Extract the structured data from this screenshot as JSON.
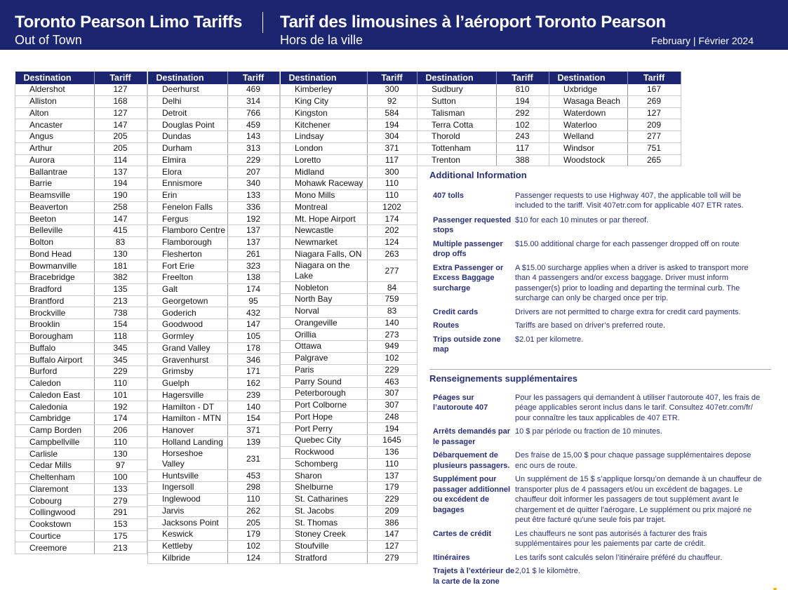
{
  "header": {
    "title_en": "Toronto Pearson Limo Tariffs",
    "subtitle_en": "Out of Town",
    "title_fr": "Tarif des limousines à l’aéroport Toronto Pearson",
    "subtitle_fr": "Hors de la ville",
    "date": "February  | Février 2024"
  },
  "colors": {
    "brand": "#1b2570",
    "text_info": "#28307a"
  },
  "table_headers": {
    "destination": "Destination",
    "tariff": "Tariff"
  },
  "tables": [
    [
      [
        "Aldershot",
        "127"
      ],
      [
        "Alliston",
        "168"
      ],
      [
        "Alton",
        "127"
      ],
      [
        "Ancaster",
        "147"
      ],
      [
        "Angus",
        "205"
      ],
      [
        "Arthur",
        "205"
      ],
      [
        "Aurora",
        "114"
      ],
      [
        "Ballantrae",
        "137"
      ],
      [
        "Barrie",
        "194"
      ],
      [
        "Beamsville",
        "190"
      ],
      [
        "Beaverton",
        "258"
      ],
      [
        "Beeton",
        "147"
      ],
      [
        "Belleville",
        "415"
      ],
      [
        "Bolton",
        "83"
      ],
      [
        "Bond Head",
        "130"
      ],
      [
        "Bowmanville",
        "181"
      ],
      [
        "Bracebridge",
        "382"
      ],
      [
        "Bradford",
        "135"
      ],
      [
        "Brantford",
        "213"
      ],
      [
        "Brockville",
        "738"
      ],
      [
        "Brooklin",
        "154"
      ],
      [
        "Borougham",
        "118"
      ],
      [
        "Buffalo",
        "345"
      ],
      [
        "Buffalo Airport",
        "345"
      ],
      [
        "Burford",
        "229"
      ],
      [
        "Caledon",
        "110"
      ],
      [
        "Caledon East",
        "101"
      ],
      [
        "Caledonia",
        "192"
      ],
      [
        "Cambridge",
        "174"
      ],
      [
        "Camp Borden",
        "206"
      ],
      [
        "Campbellville",
        "110"
      ],
      [
        "Carlisle",
        "130"
      ],
      [
        "Cedar Mills",
        "97"
      ],
      [
        "Cheltenham",
        "100"
      ],
      [
        "Claremont",
        "133"
      ],
      [
        "Cobourg",
        "279"
      ],
      [
        "Collingwood",
        "291"
      ],
      [
        "Cookstown",
        "153"
      ],
      [
        "Courtice",
        "175"
      ],
      [
        "Creemore",
        "213"
      ]
    ],
    [
      [
        "Deerhurst",
        "469"
      ],
      [
        "Delhi",
        "314"
      ],
      [
        "Detroit",
        "766"
      ],
      [
        "Douglas Point",
        "459"
      ],
      [
        "Dundas",
        "143"
      ],
      [
        "Durham",
        "313"
      ],
      [
        "Elmira",
        "229"
      ],
      [
        "Elora",
        "207"
      ],
      [
        "Ennismore",
        "340"
      ],
      [
        "Erin",
        "133"
      ],
      [
        "Fenelon Falls",
        "336"
      ],
      [
        "Fergus",
        "192"
      ],
      [
        "Flamboro Centre",
        "137"
      ],
      [
        "Flamborough",
        "137"
      ],
      [
        "Flesherton",
        "261"
      ],
      [
        "Fort Erie",
        "323"
      ],
      [
        "Freelton",
        "138"
      ],
      [
        "Galt",
        "174"
      ],
      [
        "Georgetown",
        "95"
      ],
      [
        "Goderich",
        "432"
      ],
      [
        "Goodwood",
        "147"
      ],
      [
        "Gormley",
        "105"
      ],
      [
        "Grand Valley",
        "178"
      ],
      [
        "Gravenhurst",
        "346"
      ],
      [
        "Grimsby",
        "171"
      ],
      [
        "Guelph",
        "162"
      ],
      [
        "Hagersville",
        "239"
      ],
      [
        "Hamilton - DT",
        "140"
      ],
      [
        "Hamilton - MTN",
        "154"
      ],
      [
        "Hanover",
        "371"
      ],
      [
        "Holland Landing",
        "139"
      ],
      [
        "Horseshoe Valley",
        "231"
      ],
      [
        "Huntsville",
        "453"
      ],
      [
        "Ingersoll",
        "298"
      ],
      [
        "Inglewood",
        "110"
      ],
      [
        "Jarvis",
        "262"
      ],
      [
        "Jacksons Point",
        "205"
      ],
      [
        "Keswick",
        "179"
      ],
      [
        "Kettleby",
        "102"
      ],
      [
        "Kilbride",
        "124"
      ]
    ],
    [
      [
        "Kimberley",
        "300"
      ],
      [
        "King City",
        "92"
      ],
      [
        "Kingston",
        "584"
      ],
      [
        "Kitchener",
        "194"
      ],
      [
        "Lindsay",
        "304"
      ],
      [
        "London",
        "371"
      ],
      [
        "Loretto",
        "117"
      ],
      [
        "Midland",
        "300"
      ],
      [
        "Mohawk Raceway",
        "110"
      ],
      [
        "Mono Mills",
        "110"
      ],
      [
        "Montreal",
        "1202"
      ],
      [
        "Mt. Hope Airport",
        "174"
      ],
      [
        "Newcastle",
        "202"
      ],
      [
        "Newmarket",
        "124"
      ],
      [
        "Niagara Falls, ON",
        "263"
      ],
      [
        "Niagara on the Lake",
        "277"
      ],
      [
        "Nobleton",
        "84"
      ],
      [
        "North Bay",
        "759"
      ],
      [
        "Norval",
        "83"
      ],
      [
        "Orangeville",
        "140"
      ],
      [
        "Orillia",
        "273"
      ],
      [
        "Ottawa",
        "949"
      ],
      [
        "Palgrave",
        "102"
      ],
      [
        "Paris",
        "229"
      ],
      [
        "Parry Sound",
        "463"
      ],
      [
        "Peterborough",
        "307"
      ],
      [
        "Port Colborne",
        "307"
      ],
      [
        "Port Hope",
        "248"
      ],
      [
        "Port Perry",
        "194"
      ],
      [
        "Quebec City",
        "1645"
      ],
      [
        "Rockwood",
        "136"
      ],
      [
        "Schomberg",
        "110"
      ],
      [
        "Sharon",
        "137"
      ],
      [
        "Shelburne",
        "179"
      ],
      [
        "St. Catharines",
        "229"
      ],
      [
        "St. Jacobs",
        "209"
      ],
      [
        "St. Thomas",
        "386"
      ],
      [
        "Stoney Creek",
        "147"
      ],
      [
        "Stoufville",
        "127"
      ],
      [
        "Stratford",
        "279"
      ]
    ],
    [
      [
        "Sudbury",
        "810"
      ],
      [
        "Sutton",
        "194"
      ],
      [
        "Talisman",
        "292"
      ],
      [
        "Terra Cotta",
        "102"
      ],
      [
        "Thorold",
        "243"
      ],
      [
        "Tottenham",
        "117"
      ],
      [
        "Trenton",
        "388"
      ]
    ],
    [
      [
        "Uxbridge",
        "167"
      ],
      [
        "Wasaga Beach",
        "269"
      ],
      [
        "Waterdown",
        "127"
      ],
      [
        "Waterloo",
        "209"
      ],
      [
        "Welland",
        "277"
      ],
      [
        "Windsor",
        "751"
      ],
      [
        "Woodstock",
        "265"
      ]
    ]
  ],
  "info_en": {
    "title": "Additional Information",
    "items": [
      {
        "label": "407 tolls",
        "text": "Passenger requests to use Highway 407, the applicable toll will be included to the tariff. Visit 407etr.com for applicable 407 ETR rates."
      },
      {
        "label": "Passenger requested stops",
        "text": "$10 for each 10 minutes or par thereof."
      },
      {
        "label": "Multiple passenger drop offs",
        "text": "$15.00 additional charge for each passenger dropped off on route"
      },
      {
        "label": "Extra Passenger or Excess Baggage surcharge",
        "text": "A $15.00 surcharge applies when a driver is asked to transport more than 4 passengers and/or excess baggage. Driver must inform passenger(s) prior to loading and departing the terminal curb.  The surcharge can only be charged once per trip."
      },
      {
        "label": "Credit cards",
        "text": "Drivers are not permitted to charge extra for credit card payments."
      },
      {
        "label": "Routes",
        "text": "Tariffs are based on driver’s preferred route."
      },
      {
        "label": "Trips outside zone map",
        "text": "$2.01 per kilometre."
      }
    ]
  },
  "info_fr": {
    "title": "Renseignements supplémentaires",
    "items": [
      {
        "label": "Péages sur l’autoroute 407",
        "text": "Pour les passagers qui demandent à utiliser l’autoroute 407, les frais de péage applicables seront inclus dans le tarif. Consultez 407etr.com/fr/ pour connaître les taux applicables de 407 ETR."
      },
      {
        "label": "Arrêts demandés par le passager",
        "text": "10 $ par période ou fraction de 10 minutes."
      },
      {
        "label": "Débarquement de plusieurs passagers.",
        "text": "Des fraise de 15,00 $ pour chaque passage supplémentaires depose enc ours de route."
      },
      {
        "label": "Supplément pour passager additionnel ou excédent de bagages",
        "text": "Un supplément de 15 $ s’applique lorsqu’on demande à un chauffeur de transporter plus de 4 passagers et/ou un excédent de bagages. Le chauffeur doit informer les passagers de tout supplément avant le chargement et de quitter l'aérogare. Le supplément ou prix majoré ne peut être facturé qu'une seule fois par trajet."
      },
      {
        "label": "Cartes de crédit",
        "text": "Les chauffeurs ne sont pas autorisés à facturer des frais supplémentaires pour les paiements par carte de crédit."
      },
      {
        "label": "Itinéraires",
        "text": "Les tarifs sont calculés selon l’itinéraire préféré du chauffeur."
      },
      {
        "label": "Trajets à l’extérieur de la carte de la zone",
        "text": "2,01 $ le kilomètre."
      }
    ]
  }
}
